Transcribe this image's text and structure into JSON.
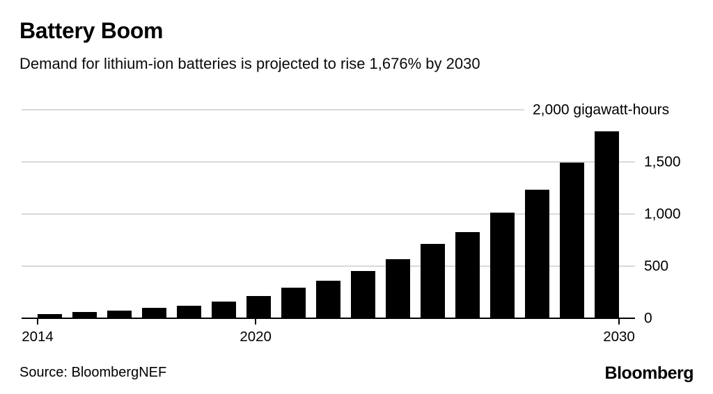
{
  "header": {
    "title": "Battery Boom",
    "subtitle": "Demand for lithium-ion batteries is projected to rise 1,676% by 2030"
  },
  "chart_data": {
    "type": "bar",
    "title": "Battery Boom",
    "subtitle": "Demand for lithium-ion batteries is projected to rise 1,676% by 2030",
    "unit": "gigawatt-hours",
    "categories": [
      "2014",
      "2015",
      "2016",
      "2017",
      "2018",
      "2019",
      "2020",
      "2021",
      "2022",
      "2023",
      "2024",
      "2025",
      "2026",
      "2027",
      "2028",
      "2029",
      "2030"
    ],
    "values": [
      42,
      63,
      73,
      97,
      120,
      160,
      210,
      295,
      360,
      450,
      570,
      715,
      825,
      1010,
      1235,
      1490,
      1790
    ],
    "ylim": [
      0,
      2000
    ],
    "y_ticks": [
      {
        "value": 0,
        "label": "0"
      },
      {
        "value": 500,
        "label": "500"
      },
      {
        "value": 1000,
        "label": "1,000"
      },
      {
        "value": 1500,
        "label": "1,500"
      },
      {
        "value": 2000,
        "label": "2,000 gigawatt-hours"
      }
    ],
    "x_tick_labels": [
      "2014",
      "2020",
      "2030"
    ],
    "grid": true,
    "legend": false,
    "bar_color": "#000000",
    "grid_color": "#d9d9d9",
    "axis_color": "#000000",
    "background_color": "#ffffff"
  },
  "footer": {
    "source": "Source: BloombergNEF",
    "logo": "Bloomberg"
  }
}
